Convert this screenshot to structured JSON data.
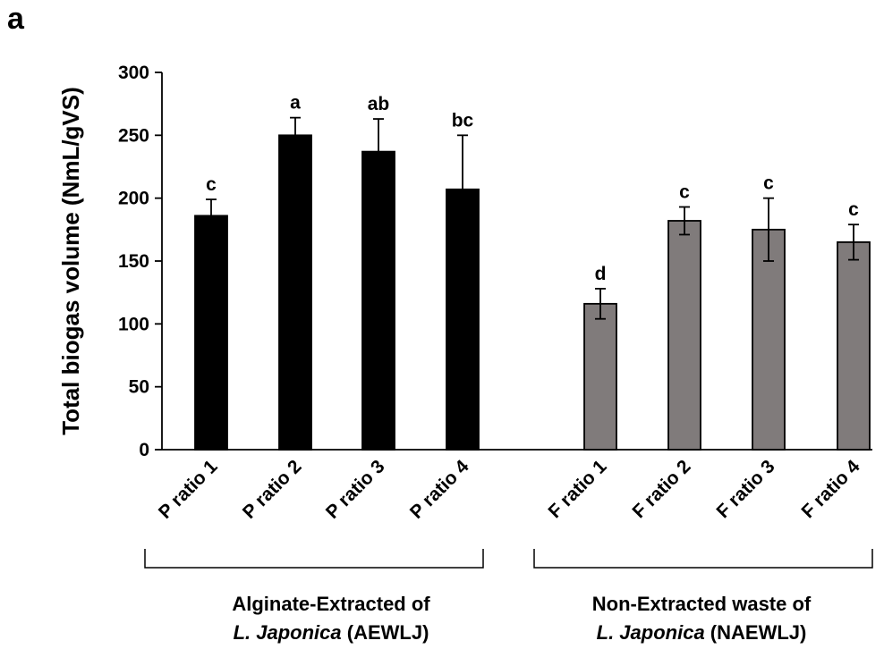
{
  "panel_label": "a",
  "chart_data": {
    "type": "bar",
    "ylabel": "Total biogas volume (NmL/gVS)",
    "ylim": [
      0,
      300
    ],
    "yticks": [
      0,
      50,
      100,
      150,
      200,
      250,
      300
    ],
    "grid": false,
    "categories": [
      "P ratio 1",
      "P ratio 2",
      "P ratio 3",
      "P ratio 4",
      "F ratio 1",
      "F ratio 2",
      "F ratio 3",
      "F ratio 4"
    ],
    "values": [
      186,
      250,
      237,
      207,
      116,
      182,
      175,
      165
    ],
    "errors": [
      13,
      14,
      26,
      43,
      12,
      11,
      25,
      14
    ],
    "significance_letters": [
      "c",
      "a",
      "ab",
      "bc",
      "d",
      "c",
      "c",
      "c"
    ],
    "groups": [
      {
        "line1": "Alginate-Extracted of",
        "species": "L. Japonica",
        "suffix": " (AEWLJ)",
        "color": "#000000",
        "categories": [
          0,
          1,
          2,
          3
        ]
      },
      {
        "line1": "Non-Extracted waste of",
        "species": "L. Japonica",
        "suffix": " (NAEWLJ)",
        "color": "#807b7b",
        "categories": [
          4,
          5,
          6,
          7
        ]
      }
    ]
  }
}
